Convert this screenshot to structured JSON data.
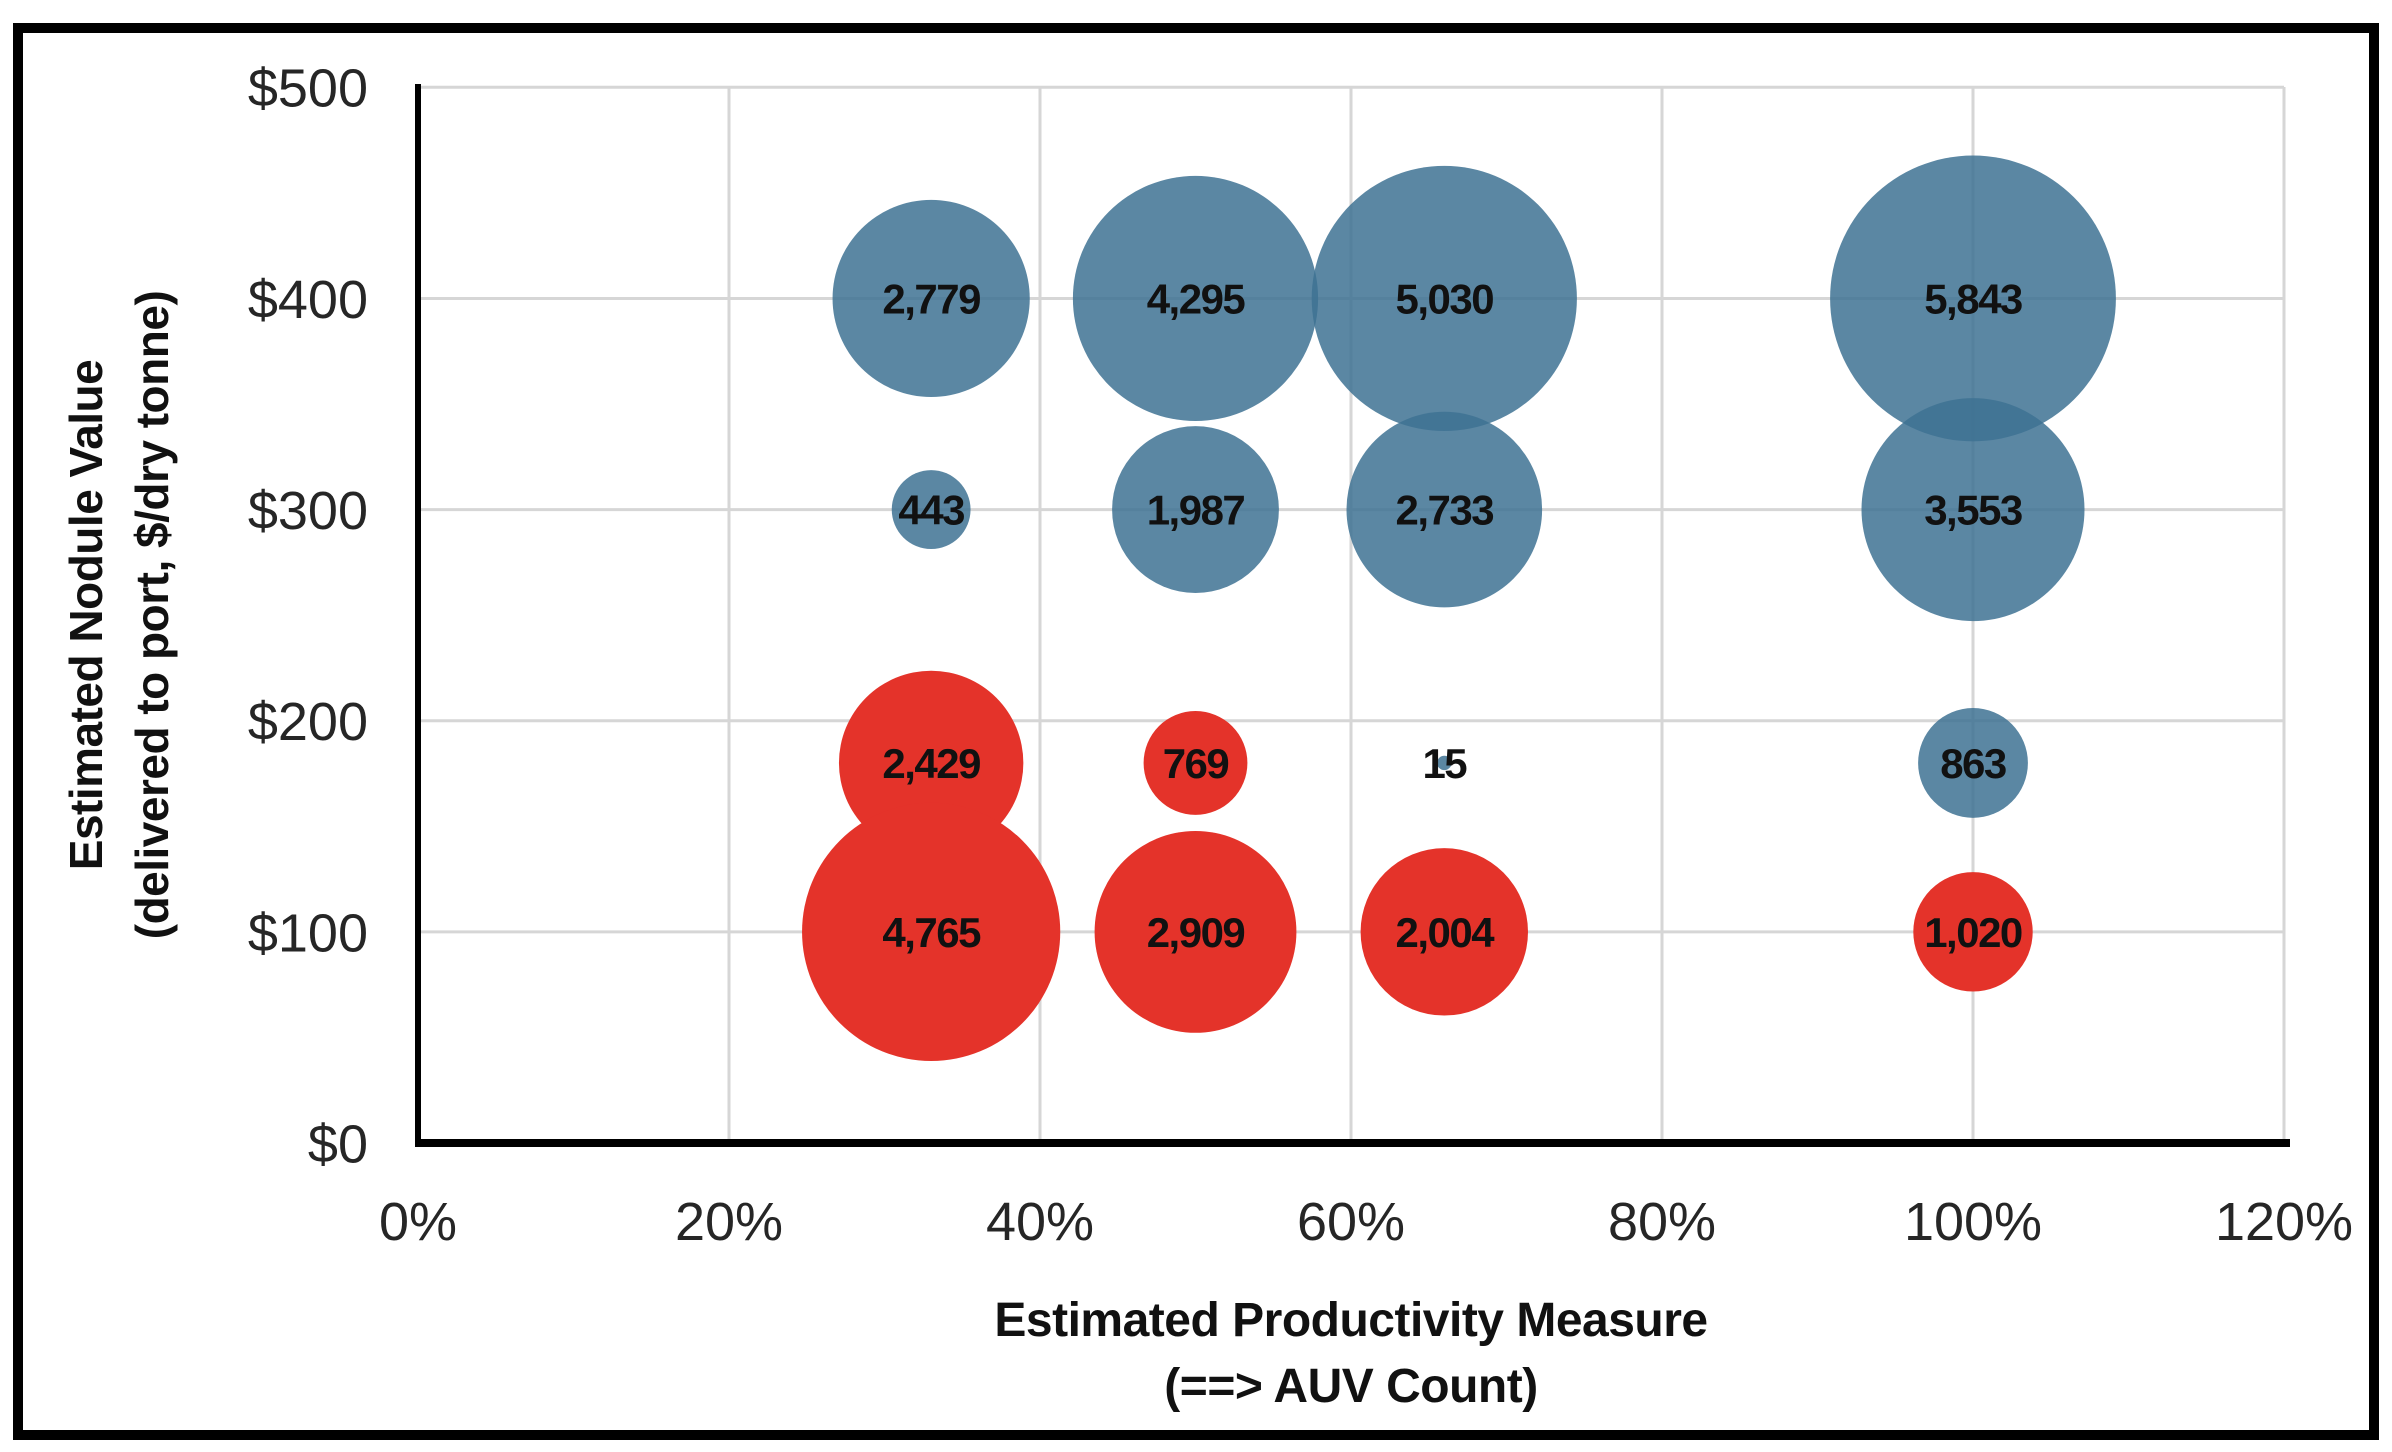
{
  "colors": {
    "blue_series": "#3E7293",
    "blue_series_apparent": "#5B87A3",
    "blue_opacity": 0.85,
    "red_series": "#E4332A",
    "red_opacity": 1,
    "gridline": "#D6D6D6",
    "axis_line": "#000000",
    "figure_border": "#000000",
    "tick_text": "#262626",
    "label_text": "#111111"
  },
  "chart_data": {
    "type": "scatter",
    "subtype": "bubble",
    "title": "",
    "xlabel_line1": "Estimated Productivity Measure",
    "xlabel_line2": "(==> AUV Count)",
    "ylabel_line1": "Estimated Nodule Value",
    "ylabel_line2": "(delivered to port, $/dry tonne)",
    "xlim": [
      0,
      120
    ],
    "ylim": [
      0,
      500
    ],
    "grid": true,
    "legend": "none",
    "size_encoding": "bubble area proportional to value",
    "x_ticks": [
      {
        "value": 0,
        "label": "0%"
      },
      {
        "value": 20,
        "label": "20%"
      },
      {
        "value": 40,
        "label": "40%"
      },
      {
        "value": 60,
        "label": "60%"
      },
      {
        "value": 80,
        "label": "80%"
      },
      {
        "value": 100,
        "label": "100%"
      },
      {
        "value": 120,
        "label": "120%"
      }
    ],
    "y_ticks": [
      {
        "value": 0,
        "label": "$0"
      },
      {
        "value": 100,
        "label": "$100"
      },
      {
        "value": 200,
        "label": "$200"
      },
      {
        "value": 300,
        "label": "$300"
      },
      {
        "value": 400,
        "label": "$400"
      },
      {
        "value": 500,
        "label": "$500"
      }
    ],
    "series": [
      {
        "name": "blue-bubbles",
        "color_key": "blue_series",
        "opacity": 0.85,
        "points": [
          {
            "x": 33,
            "y": 400,
            "value": 2779,
            "label": "2,779"
          },
          {
            "x": 50,
            "y": 400,
            "value": 4295,
            "label": "4,295"
          },
          {
            "x": 66,
            "y": 400,
            "value": 5030,
            "label": "5,030"
          },
          {
            "x": 100,
            "y": 400,
            "value": 5843,
            "label": "5,843"
          },
          {
            "x": 33,
            "y": 300,
            "value": 443,
            "label": "443"
          },
          {
            "x": 50,
            "y": 300,
            "value": 1987,
            "label": "1,987"
          },
          {
            "x": 66,
            "y": 300,
            "value": 2733,
            "label": "2,733"
          },
          {
            "x": 100,
            "y": 300,
            "value": 3553,
            "label": "3,553"
          },
          {
            "x": 66,
            "y": 180,
            "value": 15,
            "label": "15"
          },
          {
            "x": 100,
            "y": 180,
            "value": 863,
            "label": "863"
          }
        ]
      },
      {
        "name": "red-bubbles",
        "color_key": "red_series",
        "opacity": 1,
        "points": [
          {
            "x": 33,
            "y": 180,
            "value": 2429,
            "label": "2,429"
          },
          {
            "x": 50,
            "y": 180,
            "value": 769,
            "label": "769"
          },
          {
            "x": 33,
            "y": 100,
            "value": 4765,
            "label": "4,765"
          },
          {
            "x": 50,
            "y": 100,
            "value": 2909,
            "label": "2,909"
          },
          {
            "x": 66,
            "y": 100,
            "value": 2004,
            "label": "2,004"
          },
          {
            "x": 100,
            "y": 100,
            "value": 1020,
            "label": "1,020"
          }
        ]
      }
    ]
  }
}
